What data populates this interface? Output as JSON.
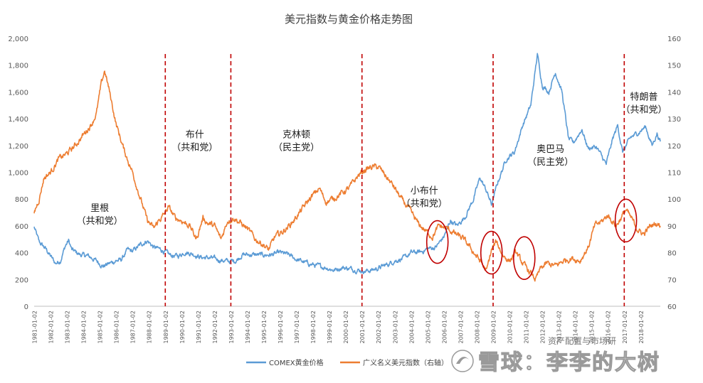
{
  "chart_data": {
    "type": "line",
    "title": "美元指数与黄金价格走势图",
    "left_axis": {
      "min": 0,
      "max": 2000,
      "ticks": [
        "0",
        "200",
        "400",
        "600",
        "800",
        "1,000",
        "1,200",
        "1,400",
        "1,600",
        "1,800",
        "2,000"
      ]
    },
    "right_axis": {
      "min": 60,
      "max": 160,
      "ticks": [
        "60",
        "70",
        "80",
        "90",
        "100",
        "110",
        "120",
        "130",
        "140",
        "150",
        "160"
      ]
    },
    "x_range": [
      1981.0,
      2019.2
    ],
    "x_tick_labels": [
      "1981-01-02",
      "1982-01-02",
      "1983-01-02",
      "1984-01-02",
      "1985-01-02",
      "1986-01-02",
      "1987-01-02",
      "1988-01-02",
      "1989-01-02",
      "1990-01-02",
      "1991-01-02",
      "1992-01-02",
      "1993-01-02",
      "1994-01-02",
      "1995-01-02",
      "1996-01-02",
      "1997-01-02",
      "1998-01-02",
      "1999-01-02",
      "2000-01-02",
      "2001-01-02",
      "2002-01-02",
      "2003-01-02",
      "2004-01-02",
      "2005-01-02",
      "2006-01-02",
      "2007-01-02",
      "2008-01-02",
      "2009-01-02",
      "2010-01-02",
      "2011-01-02",
      "2012-01-02",
      "2013-01-02",
      "2014-01-02",
      "2015-01-02",
      "2016-01-02",
      "2017-01-02",
      "2018-01-02"
    ],
    "series": [
      {
        "name": "COMEX黄金价格",
        "axis": "left",
        "color": "#5b9bd5",
        "points": [
          [
            1981.0,
            590
          ],
          [
            1981.3,
            480
          ],
          [
            1981.7,
            430
          ],
          [
            1982.3,
            320
          ],
          [
            1982.6,
            340
          ],
          [
            1982.9,
            450
          ],
          [
            1983.1,
            490
          ],
          [
            1983.3,
            420
          ],
          [
            1983.8,
            385
          ],
          [
            1984.3,
            375
          ],
          [
            1984.8,
            340
          ],
          [
            1985.2,
            300
          ],
          [
            1985.6,
            320
          ],
          [
            1986.0,
            340
          ],
          [
            1986.3,
            345
          ],
          [
            1986.7,
            420
          ],
          [
            1987.0,
            410
          ],
          [
            1987.5,
            460
          ],
          [
            1987.9,
            490
          ],
          [
            1988.3,
            440
          ],
          [
            1988.8,
            420
          ],
          [
            1989.3,
            380
          ],
          [
            1989.8,
            375
          ],
          [
            1990.2,
            405
          ],
          [
            1990.7,
            390
          ],
          [
            1991.2,
            365
          ],
          [
            1991.8,
            360
          ],
          [
            1992.3,
            345
          ],
          [
            1992.9,
            335
          ],
          [
            1993.3,
            340
          ],
          [
            1993.7,
            385
          ],
          [
            1994.3,
            385
          ],
          [
            1995.0,
            382
          ],
          [
            1995.5,
            385
          ],
          [
            1996.0,
            400
          ],
          [
            1996.5,
            385
          ],
          [
            1997.0,
            350
          ],
          [
            1997.7,
            320
          ],
          [
            1998.3,
            300
          ],
          [
            1998.8,
            290
          ],
          [
            1999.3,
            270
          ],
          [
            1999.8,
            290
          ],
          [
            2000.3,
            280
          ],
          [
            2000.8,
            270
          ],
          [
            2001.2,
            262
          ],
          [
            2001.6,
            270
          ],
          [
            2002.0,
            285
          ],
          [
            2002.6,
            315
          ],
          [
            2003.0,
            340
          ],
          [
            2003.6,
            360
          ],
          [
            2004.0,
            400
          ],
          [
            2004.6,
            405
          ],
          [
            2005.0,
            430
          ],
          [
            2005.5,
            440
          ],
          [
            2006.0,
            520
          ],
          [
            2006.4,
            640
          ],
          [
            2006.8,
            600
          ],
          [
            2007.3,
            670
          ],
          [
            2007.8,
            800
          ],
          [
            2008.2,
            960
          ],
          [
            2008.6,
            860
          ],
          [
            2008.9,
            760
          ],
          [
            2009.3,
            930
          ],
          [
            2009.8,
            1100
          ],
          [
            2010.3,
            1150
          ],
          [
            2010.8,
            1350
          ],
          [
            2011.3,
            1500
          ],
          [
            2011.7,
            1880
          ],
          [
            2012.0,
            1650
          ],
          [
            2012.4,
            1600
          ],
          [
            2012.8,
            1750
          ],
          [
            2013.2,
            1600
          ],
          [
            2013.6,
            1250
          ],
          [
            2013.9,
            1220
          ],
          [
            2014.4,
            1320
          ],
          [
            2014.8,
            1180
          ],
          [
            2015.3,
            1190
          ],
          [
            2015.9,
            1060
          ],
          [
            2016.3,
            1250
          ],
          [
            2016.6,
            1350
          ],
          [
            2016.9,
            1150
          ],
          [
            2017.4,
            1260
          ],
          [
            2017.9,
            1300
          ],
          [
            2018.3,
            1340
          ],
          [
            2018.7,
            1200
          ],
          [
            2019.0,
            1290
          ],
          [
            2019.2,
            1230
          ]
        ]
      },
      {
        "name": "广义名义美元指数（右轴）",
        "axis": "right",
        "color": "#ed7d31",
        "points": [
          [
            1981.0,
            95
          ],
          [
            1981.3,
            100
          ],
          [
            1981.6,
            108
          ],
          [
            1982.0,
            110
          ],
          [
            1982.5,
            115
          ],
          [
            1983.0,
            117
          ],
          [
            1983.5,
            120
          ],
          [
            1984.0,
            124
          ],
          [
            1984.5,
            128
          ],
          [
            1984.8,
            132
          ],
          [
            1985.1,
            143
          ],
          [
            1985.3,
            148
          ],
          [
            1985.6,
            140
          ],
          [
            1986.0,
            128
          ],
          [
            1986.5,
            118
          ],
          [
            1987.0,
            110
          ],
          [
            1987.5,
            100
          ],
          [
            1987.9,
            92
          ],
          [
            1988.3,
            89
          ],
          [
            1988.6,
            92
          ],
          [
            1988.9,
            94
          ],
          [
            1989.2,
            97
          ],
          [
            1989.6,
            93
          ],
          [
            1990.0,
            92
          ],
          [
            1990.5,
            90
          ],
          [
            1990.9,
            85
          ],
          [
            1991.3,
            93
          ],
          [
            1991.6,
            91
          ],
          [
            1992.0,
            90
          ],
          [
            1992.4,
            85
          ],
          [
            1992.8,
            92
          ],
          [
            1993.2,
            93
          ],
          [
            1993.6,
            91
          ],
          [
            1994.0,
            89
          ],
          [
            1994.5,
            85
          ],
          [
            1995.0,
            83
          ],
          [
            1995.3,
            81
          ],
          [
            1995.7,
            86
          ],
          [
            1996.2,
            88
          ],
          [
            1996.7,
            91
          ],
          [
            1997.2,
            95
          ],
          [
            1997.8,
            100
          ],
          [
            1998.4,
            104
          ],
          [
            1998.8,
            99
          ],
          [
            1999.2,
            100
          ],
          [
            1999.7,
            102
          ],
          [
            2000.2,
            104
          ],
          [
            2000.8,
            109
          ],
          [
            2001.2,
            111
          ],
          [
            2001.6,
            112
          ],
          [
            2002.0,
            112
          ],
          [
            2002.4,
            109
          ],
          [
            2002.9,
            105
          ],
          [
            2003.4,
            100
          ],
          [
            2003.9,
            96
          ],
          [
            2004.4,
            91
          ],
          [
            2004.9,
            88
          ],
          [
            2005.3,
            86
          ],
          [
            2005.7,
            90
          ],
          [
            2006.2,
            89
          ],
          [
            2006.7,
            87
          ],
          [
            2007.2,
            85
          ],
          [
            2007.7,
            81
          ],
          [
            2008.2,
            77
          ],
          [
            2008.6,
            73
          ],
          [
            2008.9,
            81
          ],
          [
            2009.2,
            84
          ],
          [
            2009.6,
            79
          ],
          [
            2010.0,
            77
          ],
          [
            2010.4,
            80
          ],
          [
            2010.8,
            76
          ],
          [
            2011.2,
            73
          ],
          [
            2011.6,
            70
          ],
          [
            2011.9,
            74
          ],
          [
            2012.3,
            76
          ],
          [
            2012.8,
            75
          ],
          [
            2013.3,
            77
          ],
          [
            2013.8,
            78
          ],
          [
            2014.3,
            77
          ],
          [
            2014.8,
            82
          ],
          [
            2015.2,
            90
          ],
          [
            2015.7,
            92
          ],
          [
            2016.0,
            94
          ],
          [
            2016.5,
            90
          ],
          [
            2016.9,
            94
          ],
          [
            2017.1,
            96
          ],
          [
            2017.5,
            92
          ],
          [
            2017.9,
            88
          ],
          [
            2018.2,
            87
          ],
          [
            2018.6,
            90
          ],
          [
            2019.0,
            91
          ],
          [
            2019.2,
            90
          ]
        ]
      }
    ],
    "presidents": [
      {
        "name": "里根",
        "party": "（共和党）",
        "cx": 1985.0,
        "y": 710
      },
      {
        "name": "布什",
        "party": "（共和党）",
        "cx": 1990.8,
        "y": 1260
      },
      {
        "name": "克林顿",
        "party": "（民主党）",
        "cx": 1997.0,
        "y": 1260
      },
      {
        "name": "小布什",
        "party": "（共和党）",
        "cx": 2004.8,
        "y": 840
      },
      {
        "name": "奥巴马",
        "party": "（民主党）",
        "cx": 2012.5,
        "y": 1150
      },
      {
        "name": "特朗普",
        "party": "（共和党）",
        "cx": 2018.2,
        "y": 1540
      }
    ],
    "term_lines": [
      1989.0,
      1993.0,
      2001.0,
      2009.0,
      2017.0
    ],
    "highlight_ellipses": [
      {
        "x": 2005.6,
        "y": 84
      },
      {
        "x": 2008.9,
        "y": 80
      },
      {
        "x": 2010.9,
        "y": 78
      },
      {
        "x": 2017.1,
        "y": 92
      }
    ],
    "legend_position": "bottom"
  },
  "watermark": {
    "text": "雪球：李李的大树",
    "sub": "资产配置与市场研"
  }
}
